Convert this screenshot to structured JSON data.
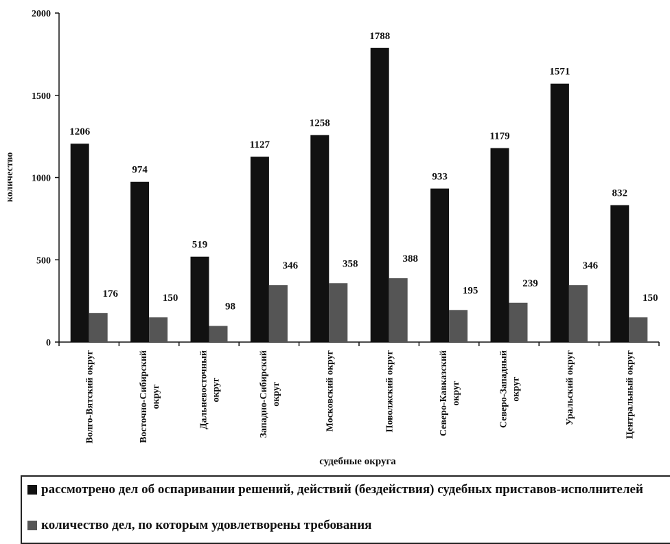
{
  "chart_data": {
    "type": "bar",
    "categories": [
      "Волго-Вятский округ",
      "Восточно-Сибирский округ",
      "Дальневосточный округ",
      "Западно-Сибирский округ",
      "Московский округ",
      "Поволжский округ",
      "Северо-Кавказский округ",
      "Северо-Западный округ",
      "Уральский округ",
      "Центральный округ"
    ],
    "category_labels": [
      [
        "Волго-Вятский округ"
      ],
      [
        "Восточно-Сибирский",
        "округ"
      ],
      [
        "Дальневосточный",
        "округ"
      ],
      [
        "Западно-Сибирский",
        "округ"
      ],
      [
        "Московский округ"
      ],
      [
        "Поволжский округ"
      ],
      [
        "Северо-Кавказский",
        "округ"
      ],
      [
        "Северо-Западный",
        "округ"
      ],
      [
        "Уральский округ"
      ],
      [
        "Центральный округ"
      ]
    ],
    "series": [
      {
        "name": "рассмотрено дел об оспаривании решений, действий (бездействия) судебных приставов-исполнителей",
        "color": "#111111",
        "values": [
          1206,
          974,
          519,
          1127,
          1258,
          1788,
          933,
          1179,
          1571,
          832
        ]
      },
      {
        "name": "количество дел, по которым удовлетворены требования",
        "color": "#555555",
        "values": [
          176,
          150,
          98,
          346,
          358,
          388,
          195,
          239,
          346,
          150
        ]
      }
    ],
    "xlabel": "судебные округа",
    "ylabel": "количество",
    "ylim": [
      0,
      2000
    ],
    "yticks": [
      0,
      500,
      1000,
      1500,
      2000
    ],
    "grid": false,
    "legend_position": "bottom"
  }
}
